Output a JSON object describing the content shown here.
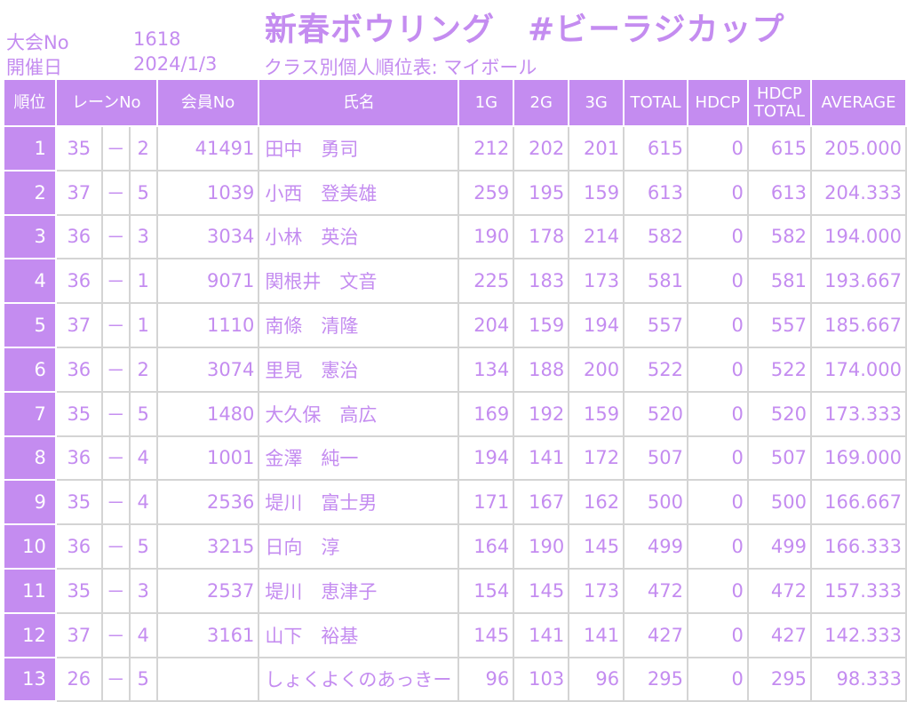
{
  "header": {
    "event_no_label": "大会No",
    "event_no_value": "1618",
    "date_label": "開催日",
    "date_value": "2024/1/3",
    "title": "新春ボウリング　#ビーラジカップ",
    "subtitle": "クラス別個人順位表: マイボール"
  },
  "columns": [
    "順位",
    "レーンNo",
    "会員No",
    "氏名",
    "1G",
    "2G",
    "3G",
    "TOTAL",
    "HDCP",
    "HDCP TOTAL",
    "AVERAGE"
  ],
  "rows": [
    {
      "rank": "1",
      "lane_a": "35",
      "dash": "－",
      "lane_b": "2",
      "member": "41491",
      "name": "田中　勇司",
      "g1": "212",
      "g2": "202",
      "g3": "201",
      "total": "615",
      "hdcp": "0",
      "hdcp_total": "615",
      "avg": "205.000"
    },
    {
      "rank": "2",
      "lane_a": "37",
      "dash": "－",
      "lane_b": "5",
      "member": "1039",
      "name": "小西　登美雄",
      "g1": "259",
      "g2": "195",
      "g3": "159",
      "total": "613",
      "hdcp": "0",
      "hdcp_total": "613",
      "avg": "204.333"
    },
    {
      "rank": "3",
      "lane_a": "36",
      "dash": "－",
      "lane_b": "3",
      "member": "3034",
      "name": "小林　英治",
      "g1": "190",
      "g2": "178",
      "g3": "214",
      "total": "582",
      "hdcp": "0",
      "hdcp_total": "582",
      "avg": "194.000"
    },
    {
      "rank": "4",
      "lane_a": "36",
      "dash": "－",
      "lane_b": "1",
      "member": "9071",
      "name": "関根井　文音",
      "g1": "225",
      "g2": "183",
      "g3": "173",
      "total": "581",
      "hdcp": "0",
      "hdcp_total": "581",
      "avg": "193.667"
    },
    {
      "rank": "5",
      "lane_a": "37",
      "dash": "－",
      "lane_b": "1",
      "member": "1110",
      "name": "南條　清隆",
      "g1": "204",
      "g2": "159",
      "g3": "194",
      "total": "557",
      "hdcp": "0",
      "hdcp_total": "557",
      "avg": "185.667"
    },
    {
      "rank": "6",
      "lane_a": "36",
      "dash": "－",
      "lane_b": "2",
      "member": "3074",
      "name": "里見　憲治",
      "g1": "134",
      "g2": "188",
      "g3": "200",
      "total": "522",
      "hdcp": "0",
      "hdcp_total": "522",
      "avg": "174.000"
    },
    {
      "rank": "7",
      "lane_a": "35",
      "dash": "－",
      "lane_b": "5",
      "member": "1480",
      "name": "大久保　高広",
      "g1": "169",
      "g2": "192",
      "g3": "159",
      "total": "520",
      "hdcp": "0",
      "hdcp_total": "520",
      "avg": "173.333"
    },
    {
      "rank": "8",
      "lane_a": "36",
      "dash": "－",
      "lane_b": "4",
      "member": "1001",
      "name": "金澤　純一",
      "g1": "194",
      "g2": "141",
      "g3": "172",
      "total": "507",
      "hdcp": "0",
      "hdcp_total": "507",
      "avg": "169.000"
    },
    {
      "rank": "9",
      "lane_a": "35",
      "dash": "－",
      "lane_b": "4",
      "member": "2536",
      "name": "堤川　富士男",
      "g1": "171",
      "g2": "167",
      "g3": "162",
      "total": "500",
      "hdcp": "0",
      "hdcp_total": "500",
      "avg": "166.667"
    },
    {
      "rank": "10",
      "lane_a": "36",
      "dash": "－",
      "lane_b": "5",
      "member": "3215",
      "name": "日向　淳",
      "g1": "164",
      "g2": "190",
      "g3": "145",
      "total": "499",
      "hdcp": "0",
      "hdcp_total": "499",
      "avg": "166.333"
    },
    {
      "rank": "11",
      "lane_a": "35",
      "dash": "－",
      "lane_b": "3",
      "member": "2537",
      "name": "堤川　恵津子",
      "g1": "154",
      "g2": "145",
      "g3": "173",
      "total": "472",
      "hdcp": "0",
      "hdcp_total": "472",
      "avg": "157.333"
    },
    {
      "rank": "12",
      "lane_a": "37",
      "dash": "－",
      "lane_b": "4",
      "member": "3161",
      "name": "山下　裕基",
      "g1": "145",
      "g2": "141",
      "g3": "141",
      "total": "427",
      "hdcp": "0",
      "hdcp_total": "427",
      "avg": "142.333"
    },
    {
      "rank": "13",
      "lane_a": "26",
      "dash": "－",
      "lane_b": "5",
      "member": "",
      "name": "しょくよくのあっきー",
      "g1": "96",
      "g2": "103",
      "g3": "96",
      "total": "295",
      "hdcp": "0",
      "hdcp_total": "295",
      "avg": "98.333"
    }
  ],
  "colors": {
    "accent": "#c48cf0",
    "grid": "#d4d4d4"
  }
}
